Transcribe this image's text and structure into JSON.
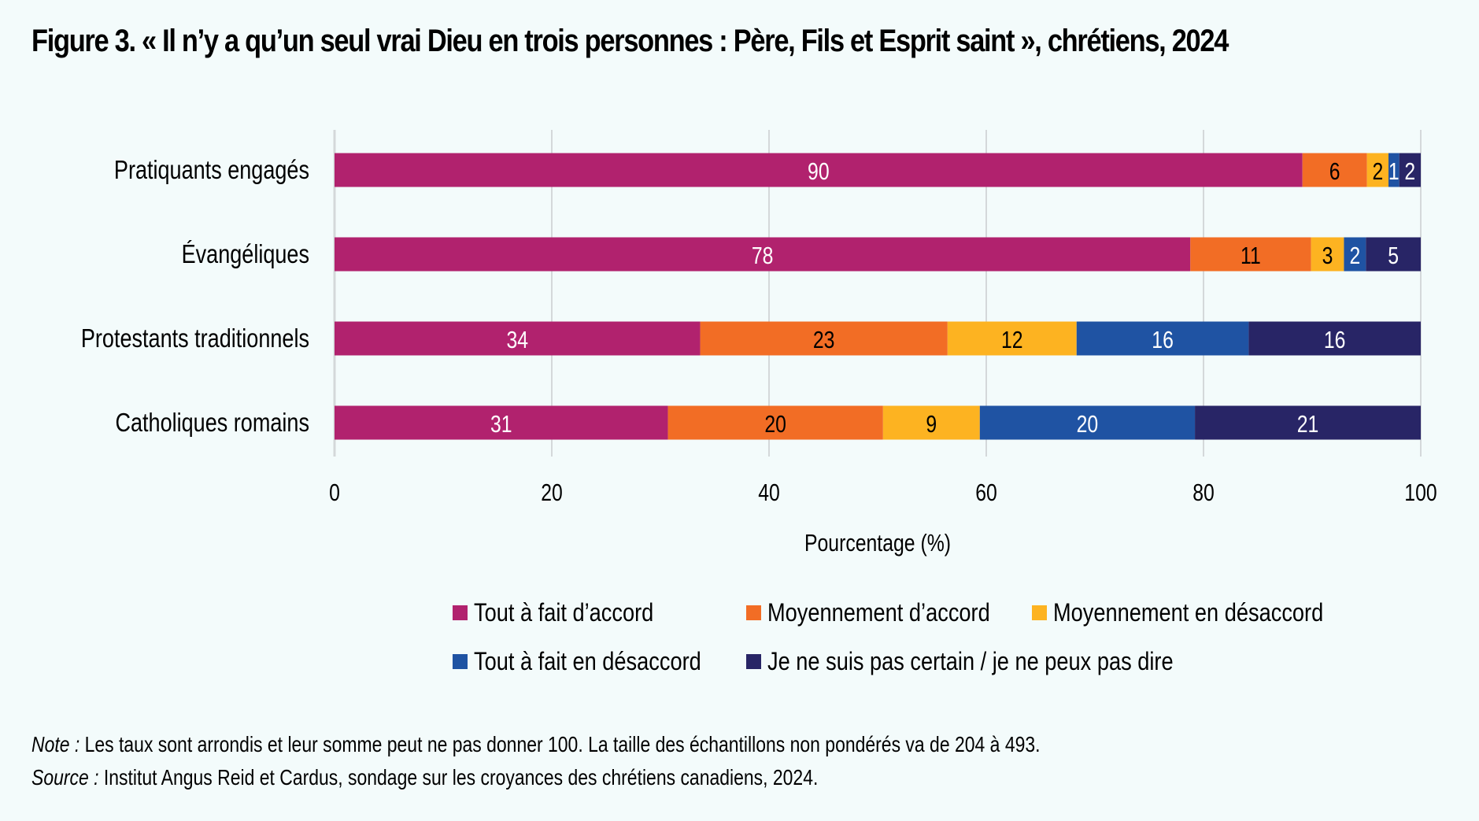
{
  "title": "Figure 3. « Il n’y a qu’un seul vrai Dieu en trois personnes : Père, Fils et Esprit saint », chrétiens, 2024",
  "chart_data": {
    "type": "bar",
    "orientation": "horizontal",
    "stacked": true,
    "title": "Figure 3. « Il n’y a qu’un seul vrai Dieu en trois personnes : Père, Fils et Esprit saint », chrétiens, 2024",
    "categories": [
      "Pratiquants engagés",
      "Évangéliques",
      "Protestants traditionnels",
      "Catholiques romains"
    ],
    "series": [
      {
        "name": "Tout à fait d’accord",
        "color": "#b1226e",
        "label_color": "#ffffff",
        "values": [
          90,
          78,
          34,
          31
        ]
      },
      {
        "name": "Moyennement d’accord",
        "color": "#f26d25",
        "label_color": "#000000",
        "values": [
          6,
          11,
          23,
          20
        ]
      },
      {
        "name": "Moyennement en désaccord",
        "color": "#fdb321",
        "label_color": "#000000",
        "values": [
          2,
          3,
          12,
          9
        ]
      },
      {
        "name": "Tout à fait en désaccord",
        "color": "#1f53a3",
        "label_color": "#ffffff",
        "values": [
          1,
          2,
          16,
          20
        ]
      },
      {
        "name": "Je ne suis pas certain / je ne peux pas dire",
        "color": "#282566",
        "label_color": "#ffffff",
        "values": [
          2,
          5,
          16,
          21
        ]
      }
    ],
    "xlabel": "Pourcentage (%)",
    "ylabel": "",
    "xlim": [
      0,
      100
    ],
    "xticks": [
      0,
      20,
      40,
      60,
      80,
      100
    ],
    "grid": "vertical",
    "legend_position": "bottom"
  },
  "footer": {
    "note_label": "Note :",
    "note_text": " Les taux sont arrondis et leur somme peut ne pas donner 100. La taille des échantillons non pondérés va de 204 à 493.",
    "source_label": "Source :",
    "source_text": " Institut Angus Reid et Cardus, sondage sur les croyances des chrétiens canadiens, 2024."
  }
}
